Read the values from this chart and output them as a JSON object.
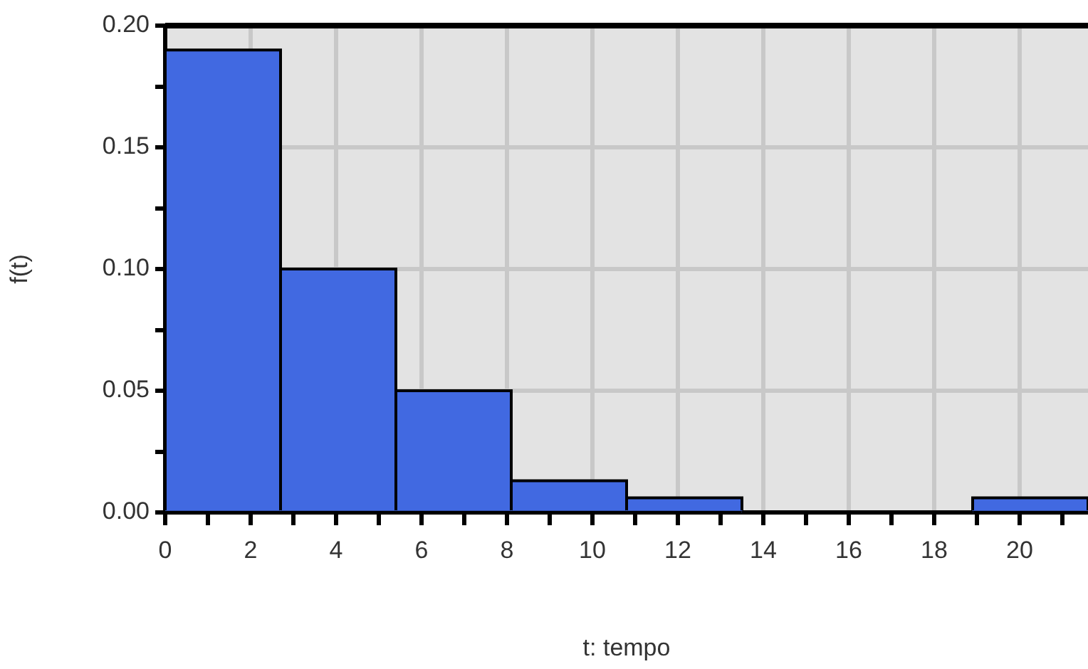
{
  "chart_data": {
    "type": "histogram",
    "xlabel": "t: tempo",
    "ylabel": "f(t)",
    "color": "#4169e1",
    "bins": [
      0,
      2.7,
      5.4,
      8.1,
      10.8,
      13.5,
      16.2,
      18.9,
      21.6
    ],
    "values": [
      0.19,
      0.1,
      0.05,
      0.013,
      0.006,
      0,
      0,
      0.006
    ],
    "xlim": [
      0,
      21.6
    ],
    "xticks": [
      0,
      {
        "value": 1,
        "label": null
      },
      2,
      {
        "value": 3,
        "label": null
      },
      4,
      {
        "value": 5,
        "label": null
      },
      6,
      {
        "value": 7,
        "label": null
      },
      8,
      {
        "value": 9,
        "label": null
      },
      10,
      {
        "value": 11,
        "label": null
      },
      12,
      {
        "value": 13,
        "label": null
      },
      14,
      {
        "value": 15,
        "label": null
      },
      16,
      {
        "value": 17,
        "label": null
      },
      18,
      {
        "value": 19,
        "label": null
      },
      20,
      {
        "value": 21,
        "label": null
      }
    ],
    "ylim": [
      0,
      0.2
    ],
    "yticks": [
      {
        "value": 0,
        "label": "0.00"
      },
      {
        "value": 0.025,
        "label": null
      },
      {
        "value": 0.05,
        "label": "0.05"
      },
      {
        "value": 0.075,
        "label": null
      },
      {
        "value": 0.1,
        "label": "0.10"
      },
      {
        "value": 0.125,
        "label": null
      },
      {
        "value": 0.15,
        "label": "0.15"
      },
      {
        "value": 0.175,
        "label": null
      },
      {
        "value": 0.2,
        "label": "0.20"
      }
    ],
    "grid": true
  }
}
